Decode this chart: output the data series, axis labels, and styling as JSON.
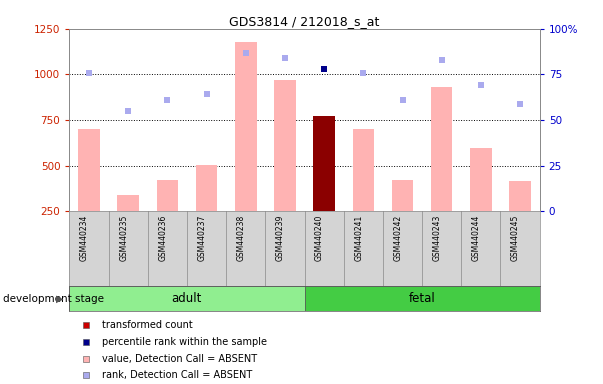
{
  "title": "GDS3814 / 212018_s_at",
  "samples": [
    "GSM440234",
    "GSM440235",
    "GSM440236",
    "GSM440237",
    "GSM440238",
    "GSM440239",
    "GSM440240",
    "GSM440241",
    "GSM440242",
    "GSM440243",
    "GSM440244",
    "GSM440245"
  ],
  "bar_values": [
    700,
    340,
    420,
    505,
    1175,
    970,
    770,
    700,
    420,
    930,
    595,
    415
  ],
  "bar_colors": [
    "#ffb3b3",
    "#ffb3b3",
    "#ffb3b3",
    "#ffb3b3",
    "#ffb3b3",
    "#ffb3b3",
    "#8B0000",
    "#ffb3b3",
    "#ffb3b3",
    "#ffb3b3",
    "#ffb3b3",
    "#ffb3b3"
  ],
  "dot_values": [
    1005,
    800,
    860,
    895,
    1120,
    1090,
    1030,
    1010,
    860,
    1080,
    940,
    840
  ],
  "dot_colors": [
    "#aaaaee",
    "#aaaaee",
    "#aaaaee",
    "#aaaaee",
    "#aaaaee",
    "#aaaaee",
    "#00008B",
    "#aaaaee",
    "#aaaaee",
    "#aaaaee",
    "#aaaaee",
    "#aaaaee"
  ],
  "group_labels": [
    "adult",
    "fetal"
  ],
  "group_adult_indices": [
    0,
    5
  ],
  "group_fetal_indices": [
    6,
    11
  ],
  "group_color_adult": "#90EE90",
  "group_color_fetal": "#44CC44",
  "ylim_left": [
    250,
    1250
  ],
  "ylim_right": [
    0,
    100
  ],
  "yticks_left": [
    250,
    500,
    750,
    1000,
    1250
  ],
  "yticks_right": [
    0,
    25,
    50,
    75,
    100
  ],
  "dotted_lines": [
    500,
    750,
    1000
  ],
  "left_tick_color": "#cc2200",
  "right_tick_color": "#0000cc",
  "legend_items": [
    {
      "label": "transformed count",
      "color": "#cc0000"
    },
    {
      "label": "percentile rank within the sample",
      "color": "#00008B"
    },
    {
      "label": "value, Detection Call = ABSENT",
      "color": "#ffb3b3"
    },
    {
      "label": "rank, Detection Call = ABSENT",
      "color": "#aaaaee"
    }
  ],
  "dev_stage_label": "development stage",
  "plot_bg": "#ffffff"
}
